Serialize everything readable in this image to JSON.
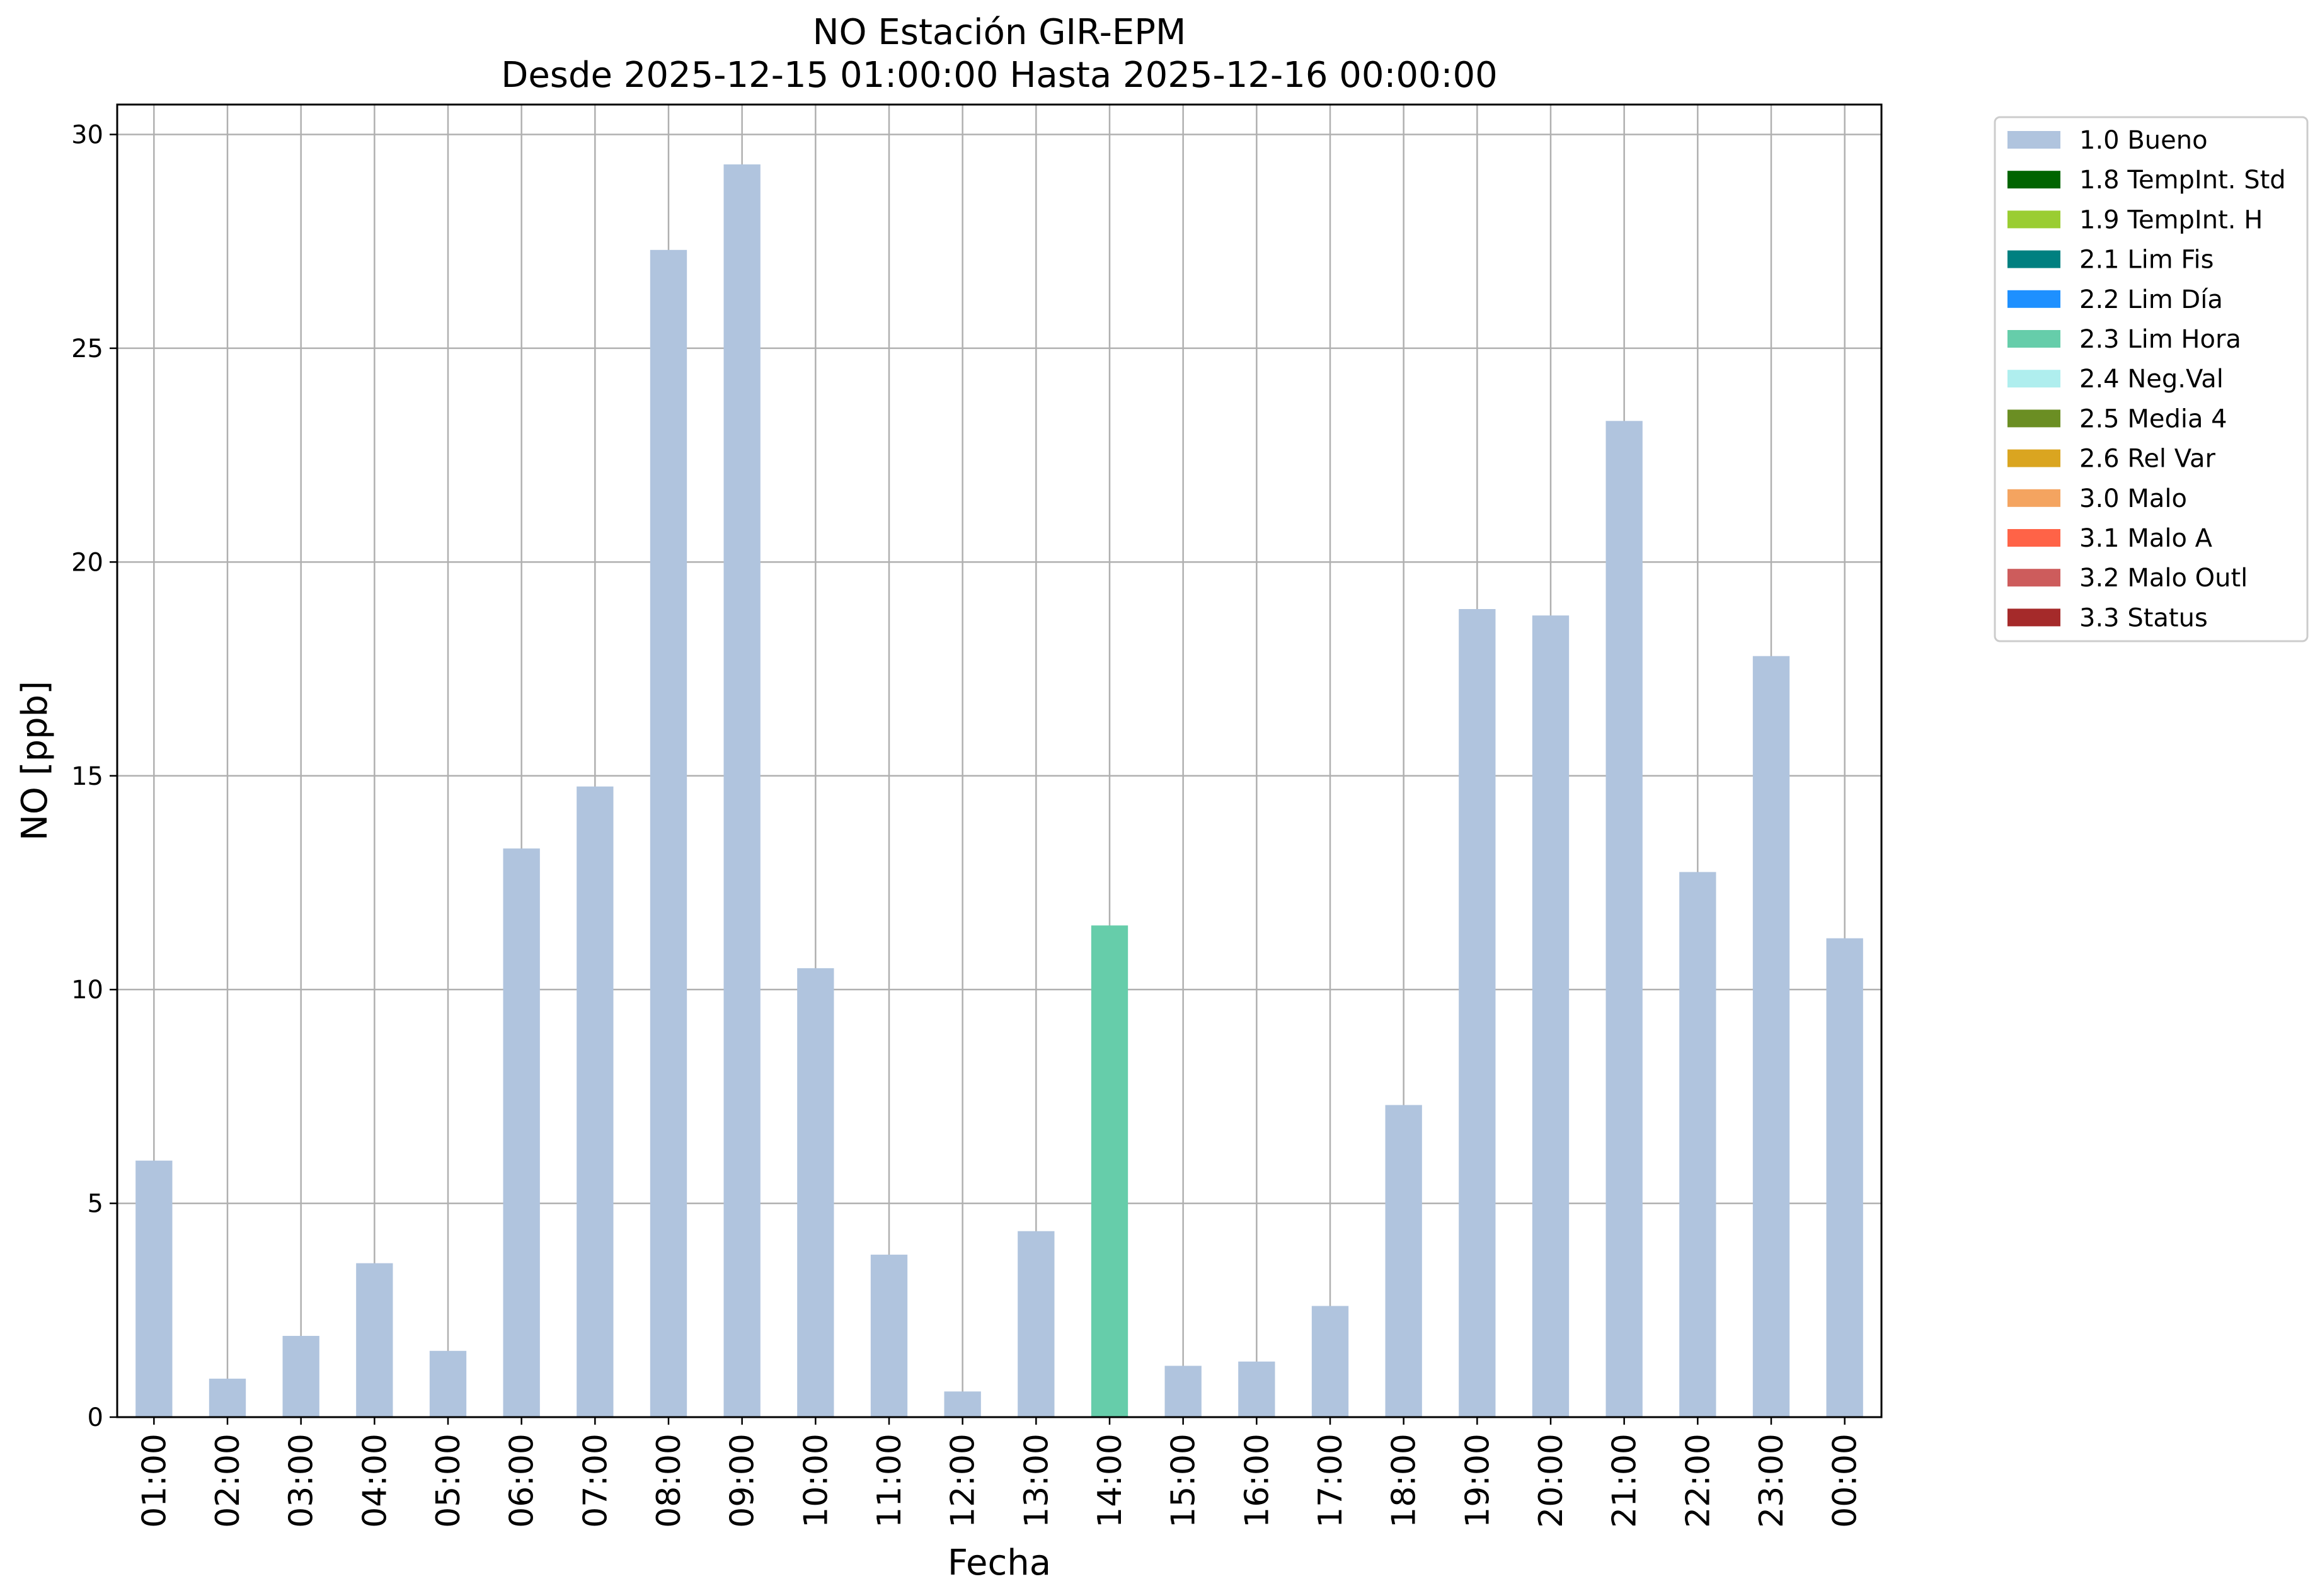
{
  "chart_data": {
    "type": "bar",
    "title": "NO Estación GIR-EPM",
    "subtitle": "Desde 2025-12-15 01:00:00 Hasta 2025-12-16 00:00:00",
    "xlabel": "Fecha",
    "ylabel": "NO [ppb]",
    "ylim": [
      0,
      30.7
    ],
    "yticks": [
      0,
      5,
      10,
      15,
      20,
      25,
      30
    ],
    "grid": true,
    "legend_position": "outside-top-right",
    "categories": [
      "01:00",
      "02:00",
      "03:00",
      "04:00",
      "05:00",
      "06:00",
      "07:00",
      "08:00",
      "09:00",
      "10:00",
      "11:00",
      "12:00",
      "13:00",
      "14:00",
      "15:00",
      "16:00",
      "17:00",
      "18:00",
      "19:00",
      "20:00",
      "21:00",
      "22:00",
      "23:00",
      "00:00"
    ],
    "values": [
      6.0,
      0.9,
      1.9,
      3.6,
      1.55,
      13.3,
      14.75,
      27.3,
      29.3,
      10.5,
      3.8,
      0.6,
      4.35,
      11.5,
      1.2,
      1.3,
      2.6,
      7.3,
      18.9,
      18.75,
      23.3,
      12.75,
      17.8,
      11.2
    ],
    "flags": [
      "1.0 Bueno",
      "1.0 Bueno",
      "1.0 Bueno",
      "1.0 Bueno",
      "1.0 Bueno",
      "1.0 Bueno",
      "1.0 Bueno",
      "1.0 Bueno",
      "1.0 Bueno",
      "1.0 Bueno",
      "1.0 Bueno",
      "1.0 Bueno",
      "1.0 Bueno",
      "2.3 Lim Hora",
      "1.0 Bueno",
      "1.0 Bueno",
      "1.0 Bueno",
      "1.0 Bueno",
      "1.0 Bueno",
      "1.0 Bueno",
      "1.0 Bueno",
      "1.0 Bueno",
      "1.0 Bueno",
      "1.0 Bueno"
    ],
    "legend": [
      {
        "label": "1.0 Bueno",
        "color": "#b0c4de"
      },
      {
        "label": "1.8 TempInt. Std",
        "color": "#006400"
      },
      {
        "label": "1.9 TempInt. H",
        "color": "#9acd32"
      },
      {
        "label": "2.1 Lim Fis",
        "color": "#008080"
      },
      {
        "label": "2.2 Lim Día",
        "color": "#1e90ff"
      },
      {
        "label": "2.3 Lim Hora",
        "color": "#66cdaa"
      },
      {
        "label": "2.4 Neg.Val",
        "color": "#afeeee"
      },
      {
        "label": "2.5 Media 4",
        "color": "#6b8e23"
      },
      {
        "label": "2.6 Rel Var",
        "color": "#daa520"
      },
      {
        "label": "3.0 Malo",
        "color": "#f4a460"
      },
      {
        "label": "3.1 Malo A",
        "color": "#ff6347"
      },
      {
        "label": "3.2 Malo Outl",
        "color": "#cd5c5c"
      },
      {
        "label": "3.3 Status",
        "color": "#a52a2a"
      }
    ]
  }
}
